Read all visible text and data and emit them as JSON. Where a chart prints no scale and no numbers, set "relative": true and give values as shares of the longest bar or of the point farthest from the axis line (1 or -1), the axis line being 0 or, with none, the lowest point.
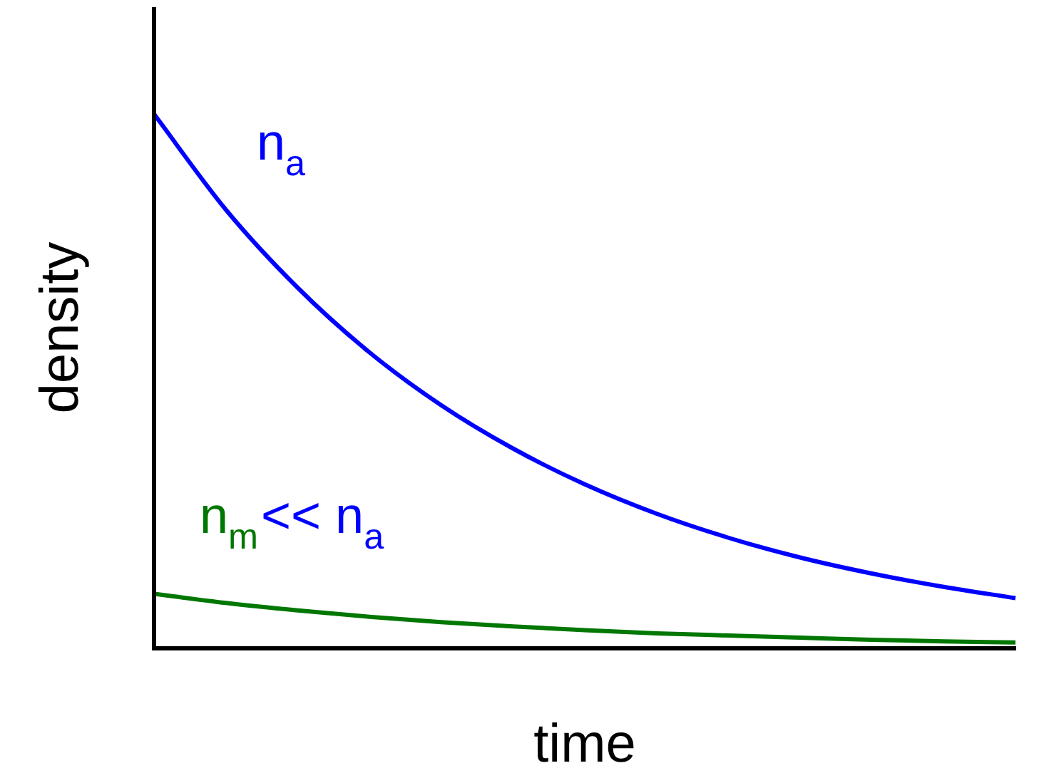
{
  "chart_data": {
    "type": "line",
    "relative": true,
    "xlabel": "time",
    "ylabel": "density",
    "legend": false,
    "grid": false,
    "marker": "none",
    "tick_labels": false,
    "categories": [
      null,
      null,
      null,
      null,
      null,
      null,
      null,
      null,
      null,
      null,
      null,
      null,
      null
    ],
    "series": [
      {
        "name": "n$_{a}$",
        "color": "#0000ff",
        "values": [
          1,
          0.821,
          0.675,
          0.554,
          0.455,
          0.374,
          0.307,
          0.252,
          0.207,
          0.17,
          0.14,
          0.115,
          0.094
        ]
      },
      {
        "name": "n$_{m}$",
        "color": "#007700",
        "values": [
          0.102,
          0.085,
          0.071,
          0.059,
          0.049,
          0.041,
          0.034,
          0.028,
          0.024,
          0.02,
          0.016,
          0.013,
          0.011
        ]
      }
    ],
    "annotations": [
      "<< n$_{a}$"
    ]
  }
}
